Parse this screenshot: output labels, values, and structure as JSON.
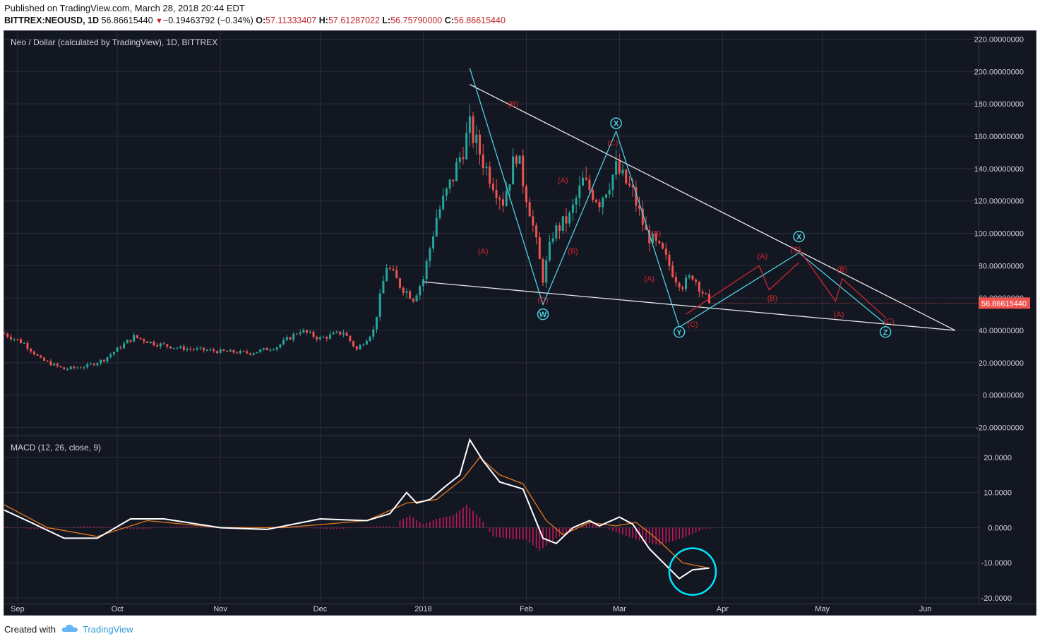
{
  "header": {
    "published": "Published on TradingView.com, March 28, 2018 20:44 EDT",
    "symbol": "BITTREX:NEOUSD, 1D",
    "last": "56.86615440",
    "change_arrow": "▼",
    "change": "−0.19463792 (−0.34%)",
    "o_label": "O:",
    "o_value": "57.11333407",
    "h_label": "H:",
    "h_value": "57.61287022",
    "l_label": "L:",
    "l_value": "56.75790000",
    "c_label": "C:",
    "c_value": "56.86615440"
  },
  "footer": {
    "created_with": "Created with",
    "brand": "TradingView",
    "brand_icon": "cloud-logo-icon"
  },
  "colors": {
    "background": "#131722",
    "grid": "#2a2e39",
    "up": "#26a69a",
    "down": "#ef5350",
    "wave_cyan": "#4dd0e1",
    "wave_red": "#d02530",
    "trendline": "#e6e6e6",
    "macd": "#ffffff",
    "signal": "#e0781e",
    "histogram": "#c2185b",
    "price_tag": "#ef5350"
  },
  "chart_data": [
    {
      "type": "candlestick",
      "title": "Neo / Dollar (calculated by TradingView), 1D, BITTREX",
      "ylim": [
        -25,
        225
      ],
      "yticks": [
        "220.00000000",
        "200.00000000",
        "180.00000000",
        "160.00000000",
        "140.00000000",
        "120.00000000",
        "100.00000000",
        "80.00000000",
        "60.00000000",
        "40.00000000",
        "20.00000000",
        "0.00000000",
        "-20.00000000"
      ],
      "ytick_values": [
        220,
        200,
        180,
        160,
        140,
        120,
        100,
        80,
        60,
        40,
        20,
        0,
        -20
      ],
      "x_labels": [
        "Sep",
        "Oct",
        "Nov",
        "Dec",
        "2018",
        "Feb",
        "Mar",
        "Apr",
        "May",
        "Jun"
      ],
      "x_label_dates": [
        "2017-09-01",
        "2017-10-01",
        "2017-11-01",
        "2017-12-01",
        "2018-01-01",
        "2018-02-01",
        "2018-03-01",
        "2018-04-01",
        "2018-05-01",
        "2018-06-01"
      ],
      "last_price_label": "56.86615440",
      "last_price": 56.87,
      "close_path": [
        [
          "2017-08-28",
          38
        ],
        [
          "2017-09-03",
          32
        ],
        [
          "2017-09-08",
          22
        ],
        [
          "2017-09-15",
          16
        ],
        [
          "2017-09-22",
          18
        ],
        [
          "2017-09-27",
          22
        ],
        [
          "2017-10-02",
          30
        ],
        [
          "2017-10-06",
          36
        ],
        [
          "2017-10-12",
          32
        ],
        [
          "2017-10-20",
          29
        ],
        [
          "2017-11-01",
          27
        ],
        [
          "2017-11-10",
          26
        ],
        [
          "2017-11-18",
          30
        ],
        [
          "2017-11-25",
          40
        ],
        [
          "2017-12-01",
          35
        ],
        [
          "2017-12-08",
          39
        ],
        [
          "2017-12-12",
          28
        ],
        [
          "2017-12-17",
          40
        ],
        [
          "2017-12-21",
          80
        ],
        [
          "2017-12-25",
          68
        ],
        [
          "2017-12-29",
          60
        ],
        [
          "2018-01-01",
          72
        ],
        [
          "2018-01-05",
          110
        ],
        [
          "2018-01-10",
          135
        ],
        [
          "2018-01-15",
          165
        ],
        [
          "2018-01-20",
          140
        ],
        [
          "2018-01-25",
          120
        ],
        [
          "2018-01-29",
          150
        ],
        [
          "2018-02-02",
          115
        ],
        [
          "2018-02-06",
          72
        ],
        [
          "2018-02-09",
          100
        ],
        [
          "2018-02-14",
          110
        ],
        [
          "2018-02-18",
          132
        ],
        [
          "2018-02-23",
          120
        ],
        [
          "2018-02-28",
          140
        ],
        [
          "2018-03-05",
          125
        ],
        [
          "2018-03-09",
          100
        ],
        [
          "2018-03-14",
          88
        ],
        [
          "2018-03-18",
          72
        ],
        [
          "2018-03-20",
          68
        ],
        [
          "2018-03-23",
          74
        ],
        [
          "2018-03-28",
          56.87
        ]
      ],
      "projections": [
        {
          "name": "upper-trendline",
          "color": "#e6e6e6",
          "points": [
            [
              "2018-01-15",
              192
            ],
            [
              "2018-06-10",
              40
            ]
          ]
        },
        {
          "name": "lower-trendline",
          "color": "#e6e6e6",
          "points": [
            [
              "2018-01-01",
              70
            ],
            [
              "2018-06-10",
              40
            ]
          ]
        },
        {
          "name": "wxy-cyan",
          "color": "#4dd0e1",
          "points": [
            [
              "2018-01-15",
              202
            ],
            [
              "2018-02-06",
              56
            ],
            [
              "2018-02-28",
              163
            ],
            [
              "2018-03-19",
              42
            ],
            [
              "2018-04-24",
              88
            ],
            [
              "2018-05-20",
              44
            ]
          ]
        },
        {
          "name": "abc-red-1",
          "color": "#d02530",
          "points": [
            [
              "2018-03-21",
              50
            ],
            [
              "2018-04-12",
              80
            ],
            [
              "2018-04-15",
              65
            ],
            [
              "2018-04-24",
              82
            ]
          ]
        },
        {
          "name": "abc-red-2",
          "color": "#d02530",
          "points": [
            [
              "2018-04-24",
              90
            ],
            [
              "2018-05-05",
              58
            ],
            [
              "2018-05-07",
              72
            ],
            [
              "2018-05-20",
              48
            ]
          ]
        }
      ],
      "wave_labels": [
        {
          "text": "(B)",
          "color": "#d02530",
          "date": "2018-01-28",
          "y": 180
        },
        {
          "text": "(A)",
          "color": "#d02530",
          "date": "2018-01-19",
          "y": 89
        },
        {
          "text": "(C)",
          "color": "#d02530",
          "date": "2018-02-06",
          "y": 59
        },
        {
          "text": "(A)",
          "color": "#d02530",
          "date": "2018-02-12",
          "y": 133
        },
        {
          "text": "(B)",
          "color": "#d02530",
          "date": "2018-02-15",
          "y": 89
        },
        {
          "text": "(C)",
          "color": "#d02530",
          "date": "2018-02-27",
          "y": 156
        },
        {
          "text": "(B)",
          "color": "#d02530",
          "date": "2018-03-12",
          "y": 100
        },
        {
          "text": "(A)",
          "color": "#d02530",
          "date": "2018-03-10",
          "y": 72
        },
        {
          "text": "(C)",
          "color": "#d02530",
          "date": "2018-03-23",
          "y": 44
        },
        {
          "text": "(A)",
          "color": "#d02530",
          "date": "2018-04-13",
          "y": 86
        },
        {
          "text": "(B)",
          "color": "#d02530",
          "date": "2018-04-16",
          "y": 60
        },
        {
          "text": "(C)",
          "color": "#d02530",
          "date": "2018-04-23",
          "y": 90
        },
        {
          "text": "(B)",
          "color": "#d02530",
          "date": "2018-05-07",
          "y": 78
        },
        {
          "text": "(A)",
          "color": "#d02530",
          "date": "2018-05-06",
          "y": 50
        },
        {
          "text": "(C)",
          "color": "#d02530",
          "date": "2018-05-21",
          "y": 46
        }
      ],
      "circled_labels": [
        {
          "text": "W",
          "date": "2018-02-06",
          "y": 50
        },
        {
          "text": "X",
          "date": "2018-02-28",
          "y": 168
        },
        {
          "text": "Y",
          "date": "2018-03-19",
          "y": 39
        },
        {
          "text": "X",
          "date": "2018-04-24",
          "y": 98
        },
        {
          "text": "Z",
          "date": "2018-05-20",
          "y": 39
        }
      ]
    },
    {
      "type": "line",
      "title": "MACD (12, 26, close, 9)",
      "ylim": [
        -21,
        26
      ],
      "yticks": [
        "20.0000",
        "10.0000",
        "0.0000",
        "-10.0000",
        "-20.0000"
      ],
      "ytick_values": [
        20,
        10,
        0,
        -10,
        -20
      ],
      "series": [
        {
          "role": "macd",
          "color": "#ffffff",
          "points": [
            [
              "2017-08-28",
              5
            ],
            [
              "2017-09-05",
              1.5
            ],
            [
              "2017-09-15",
              -3
            ],
            [
              "2017-09-25",
              -3
            ],
            [
              "2017-10-05",
              2.5
            ],
            [
              "2017-10-15",
              2.5
            ],
            [
              "2017-11-01",
              0
            ],
            [
              "2017-11-15",
              -0.5
            ],
            [
              "2017-12-01",
              2.5
            ],
            [
              "2017-12-15",
              2
            ],
            [
              "2017-12-22",
              4
            ],
            [
              "2017-12-27",
              10
            ],
            [
              "2017-12-30",
              7
            ],
            [
              "2018-01-03",
              8
            ],
            [
              "2018-01-08",
              12
            ],
            [
              "2018-01-12",
              15
            ],
            [
              "2018-01-15",
              25
            ],
            [
              "2018-01-19",
              19
            ],
            [
              "2018-01-24",
              13
            ],
            [
              "2018-01-31",
              11
            ],
            [
              "2018-02-06",
              -3
            ],
            [
              "2018-02-10",
              -4.5
            ],
            [
              "2018-02-15",
              0
            ],
            [
              "2018-02-20",
              2
            ],
            [
              "2018-02-23",
              0.5
            ],
            [
              "2018-03-01",
              3
            ],
            [
              "2018-03-05",
              1
            ],
            [
              "2018-03-10",
              -6
            ],
            [
              "2018-03-19",
              -14.5
            ],
            [
              "2018-03-23",
              -12
            ],
            [
              "2018-03-28",
              -11.5
            ]
          ]
        },
        {
          "role": "signal",
          "color": "#e0781e",
          "points": [
            [
              "2017-08-28",
              6.5
            ],
            [
              "2017-09-10",
              0
            ],
            [
              "2017-09-25",
              -2.5
            ],
            [
              "2017-10-10",
              2
            ],
            [
              "2017-11-01",
              0
            ],
            [
              "2017-11-20",
              0
            ],
            [
              "2017-12-15",
              2
            ],
            [
              "2017-12-27",
              7
            ],
            [
              "2018-01-05",
              8
            ],
            [
              "2018-01-13",
              14
            ],
            [
              "2018-01-18",
              20
            ],
            [
              "2018-01-24",
              15
            ],
            [
              "2018-01-31",
              12.5
            ],
            [
              "2018-02-07",
              2
            ],
            [
              "2018-02-12",
              -2
            ],
            [
              "2018-02-20",
              1.5
            ],
            [
              "2018-02-28",
              0.5
            ],
            [
              "2018-03-06",
              1.5
            ],
            [
              "2018-03-12",
              -3
            ],
            [
              "2018-03-20",
              -10
            ],
            [
              "2018-03-28",
              -11.5
            ]
          ]
        }
      ],
      "histogram": [
        [
          "2017-12-25",
          2
        ],
        [
          "2017-12-28",
          3.5
        ],
        [
          "2018-01-01",
          1
        ],
        [
          "2018-01-05",
          2.5
        ],
        [
          "2018-01-10",
          3.5
        ],
        [
          "2018-01-14",
          6.5
        ],
        [
          "2018-01-18",
          3
        ],
        [
          "2018-01-22",
          -2.5
        ],
        [
          "2018-01-26",
          -3
        ],
        [
          "2018-02-01",
          -3.5
        ],
        [
          "2018-02-05",
          -6.5
        ],
        [
          "2018-02-10",
          -3
        ],
        [
          "2018-02-15",
          -1
        ],
        [
          "2018-02-20",
          1.5
        ],
        [
          "2018-03-08",
          -4
        ],
        [
          "2018-03-13",
          -5
        ],
        [
          "2018-03-20",
          -3
        ],
        [
          "2018-03-26",
          -0.5
        ]
      ]
    }
  ]
}
